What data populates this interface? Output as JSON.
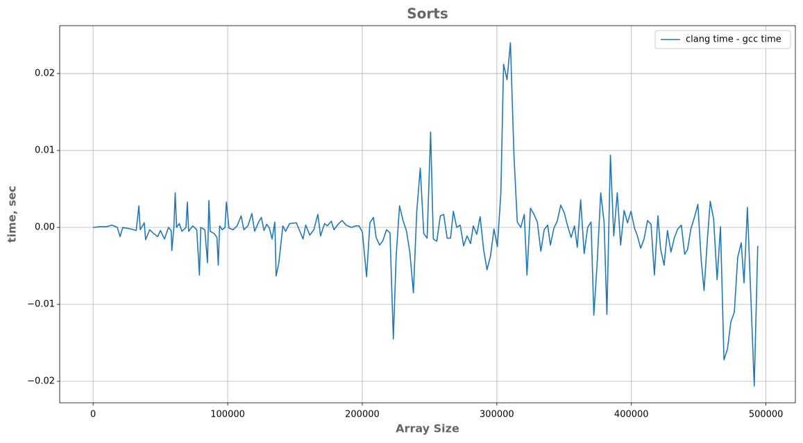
{
  "chart_data": {
    "type": "line",
    "title": "Sorts",
    "xlabel": "Array Size",
    "ylabel": "time, sec",
    "x": [
      0,
      5000,
      10000,
      14000,
      18000,
      20000,
      22000,
      28000,
      32000,
      34000,
      35000,
      38000,
      39000,
      42000,
      45000,
      48000,
      50000,
      53000,
      56000,
      58000,
      58500,
      60000,
      61000,
      62000,
      64000,
      66000,
      69000,
      70000,
      71000,
      74000,
      77000,
      79000,
      80000,
      83000,
      85000,
      86000,
      87000,
      90000,
      92000,
      93000,
      94000,
      96000,
      98000,
      99000,
      101000,
      104000,
      107000,
      110000,
      112000,
      115000,
      118000,
      120000,
      123000,
      125000,
      127000,
      129000,
      131000,
      133000,
      135000,
      136000,
      138000,
      141000,
      143000,
      146000,
      151000,
      156000,
      158000,
      161000,
      164000,
      167000,
      169000,
      172000,
      174000,
      177000,
      179000,
      182000,
      185000,
      188000,
      192000,
      195000,
      197600,
      200100,
      203200,
      205700,
      208300,
      210300,
      212900,
      215400,
      218000,
      220600,
      223100,
      225200,
      227700,
      230300,
      232900,
      235400,
      238000,
      240500,
      243100,
      245700,
      248200,
      250800,
      252800,
      255400,
      258000,
      260500,
      263100,
      265600,
      267700,
      270200,
      272800,
      275300,
      277900,
      280500,
      282500,
      285100,
      287600,
      290200,
      292700,
      295300,
      297900,
      300400,
      303000,
      305000,
      307600,
      310100,
      312700,
      315200,
      317800,
      320400,
      322400,
      325000,
      327600,
      330100,
      332700,
      335200,
      337800,
      339800,
      342400,
      344900,
      347500,
      350100,
      352600,
      355200,
      357700,
      359800,
      362300,
      364900,
      367500,
      370000,
      372100,
      374600,
      377200,
      379700,
      381800,
      384400,
      386900,
      389500,
      392000,
      394600,
      397100,
      399700,
      402300,
      404300,
      406900,
      409400,
      412000,
      414600,
      417100,
      419700,
      421700,
      424300,
      426800,
      429400,
      432000,
      434500,
      437100,
      439600,
      441700,
      444200,
      446800,
      449400,
      451900,
      454000,
      456500,
      458600,
      461100,
      463700,
      466200,
      468800,
      471400,
      473900,
      476500,
      479000,
      481600,
      483700,
      486200,
      491300,
      493900
    ],
    "series": [
      {
        "name": "clang time - gcc time",
        "color": "#1f77b4",
        "values": [
          0,
          0.0001,
          0.0001,
          0.0003,
          0,
          -0.0012,
          0,
          -0.0002,
          -0.0004,
          0.0028,
          -0.0003,
          0.0006,
          -0.0016,
          -0.0003,
          -0.0008,
          -0.0012,
          -0.0004,
          -0.0015,
          0,
          -0.0004,
          -0.003,
          0,
          0.0045,
          0,
          0.0005,
          -0.0005,
          0,
          0.0033,
          -0.0005,
          0.0002,
          -0.0003,
          -0.0062,
          0,
          -0.0003,
          -0.0046,
          0.0035,
          -0.0005,
          -0.0008,
          -0.0013,
          -0.0049,
          0.0002,
          -0.0003,
          0,
          0.0033,
          -0.0001,
          -0.0003,
          0.0002,
          0.0015,
          -0.0003,
          0.0002,
          0.0018,
          -0.0005,
          0.0007,
          0.0013,
          -0.0004,
          0.0004,
          -0.0001,
          -0.0015,
          0.0007,
          -0.0063,
          -0.0046,
          0.0002,
          -0.0005,
          0.0005,
          0.0006,
          -0.0015,
          0.0003,
          -0.001,
          -0.0003,
          0.0017,
          -0.0011,
          0.0005,
          0.0002,
          0.0008,
          -0.0003,
          0.0004,
          0.0009,
          0.0003,
          0,
          0.0002,
          0.0002,
          -0.0006,
          -0.0064,
          0.0006,
          0.0013,
          -0.0013,
          -0.0023,
          -0.0017,
          -0.0003,
          -0.0007,
          -0.0145,
          -0.0037,
          0.0028,
          0.0009,
          -0.0005,
          -0.0033,
          -0.0085,
          0.0021,
          0.0077,
          -0.0008,
          -0.0014,
          0.0124,
          -0.0015,
          -0.0018,
          0.0015,
          0.0017,
          -0.0014,
          -0.0014,
          0.0021,
          0,
          0.0003,
          -0.0024,
          -0.0011,
          -0.0021,
          0.0002,
          -0.0009,
          0.0014,
          -0.0029,
          -0.0055,
          -0.0037,
          -0.0002,
          -0.0025,
          0.0045,
          0.0212,
          0.0192,
          0.024,
          0.0095,
          0.0007,
          0,
          0.0017,
          -0.0062,
          0.0025,
          0.0017,
          0.0007,
          -0.0031,
          -0.0003,
          0.0003,
          -0.0023,
          -0.0001,
          0.0008,
          0.0029,
          0.0019,
          0.0002,
          -0.0013,
          0.0002,
          -0.0026,
          0.0036,
          -0.0034,
          0,
          0.0007,
          -0.0114,
          -0.0045,
          0.0045,
          0.0007,
          -0.0113,
          0.0094,
          -0.0011,
          0.0045,
          -0.0023,
          0.0022,
          0.0006,
          0.0021,
          -0.0001,
          -0.001,
          -0.0027,
          -0.0015,
          0.0009,
          0.0004,
          -0.0062,
          0.0015,
          -0.0028,
          -0.0049,
          -0.0004,
          -0.0032,
          -0.0013,
          -0.0002,
          0.0003,
          -0.0035,
          -0.0029,
          -0.0002,
          0.0013,
          0.003,
          -0.0043,
          -0.0082,
          -0.0015,
          0.0034,
          0.0011,
          -0.0068,
          0.0001,
          -0.0172,
          -0.0158,
          -0.0123,
          -0.011,
          -0.0039,
          -0.002,
          -0.0072,
          0.0026,
          -0.0206,
          -0.0024
        ]
      }
    ],
    "xlim": [
      -24850,
      521850
    ],
    "ylim": [
      -0.02279,
      0.02622
    ],
    "xticks": [
      0,
      100000,
      200000,
      300000,
      400000,
      500000
    ],
    "yticks": [
      {
        "value": -0.02,
        "label": "−0.02"
      },
      {
        "value": -0.01,
        "label": "−0.01"
      },
      {
        "value": 0,
        "label": "0.00"
      },
      0.01,
      0.02
    ],
    "grid": true,
    "legend": "upper right"
  }
}
